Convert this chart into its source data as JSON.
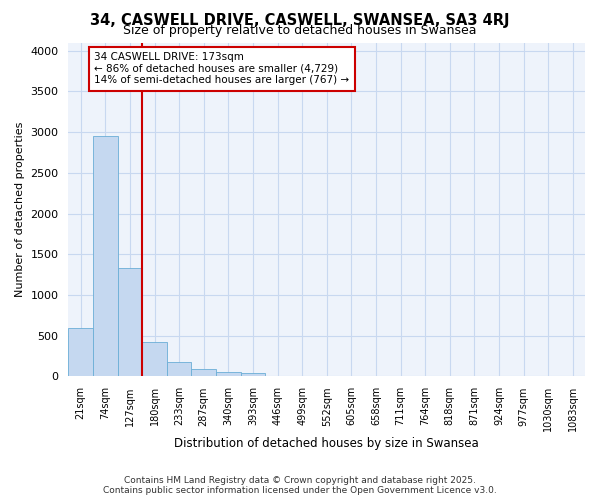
{
  "title": "34, CASWELL DRIVE, CASWELL, SWANSEA, SA3 4RJ",
  "subtitle": "Size of property relative to detached houses in Swansea",
  "xlabel": "Distribution of detached houses by size in Swansea",
  "ylabel": "Number of detached properties",
  "bar_labels": [
    "21sqm",
    "74sqm",
    "127sqm",
    "180sqm",
    "233sqm",
    "287sqm",
    "340sqm",
    "393sqm",
    "446sqm",
    "499sqm",
    "552sqm",
    "605sqm",
    "658sqm",
    "711sqm",
    "764sqm",
    "818sqm",
    "871sqm",
    "924sqm",
    "977sqm",
    "1030sqm",
    "1083sqm"
  ],
  "bar_values": [
    600,
    2950,
    1330,
    420,
    175,
    90,
    55,
    40,
    10,
    5,
    0,
    0,
    0,
    0,
    0,
    0,
    0,
    0,
    0,
    0,
    0
  ],
  "bar_color": "#c5d8f0",
  "bar_edge_color": "#6baed6",
  "vline_color": "#cc0000",
  "annotation_text": "34 CASWELL DRIVE: 173sqm\n← 86% of detached houses are smaller (4,729)\n14% of semi-detached houses are larger (767) →",
  "annotation_box_color": "#ffffff",
  "annotation_box_edge": "#cc0000",
  "ylim": [
    0,
    4100
  ],
  "yticks": [
    0,
    500,
    1000,
    1500,
    2000,
    2500,
    3000,
    3500,
    4000
  ],
  "background_color": "#ffffff",
  "plot_bg_color": "#eef3fb",
  "grid_color": "#c8d8f0",
  "footer_line1": "Contains HM Land Registry data © Crown copyright and database right 2025.",
  "footer_line2": "Contains public sector information licensed under the Open Government Licence v3.0."
}
